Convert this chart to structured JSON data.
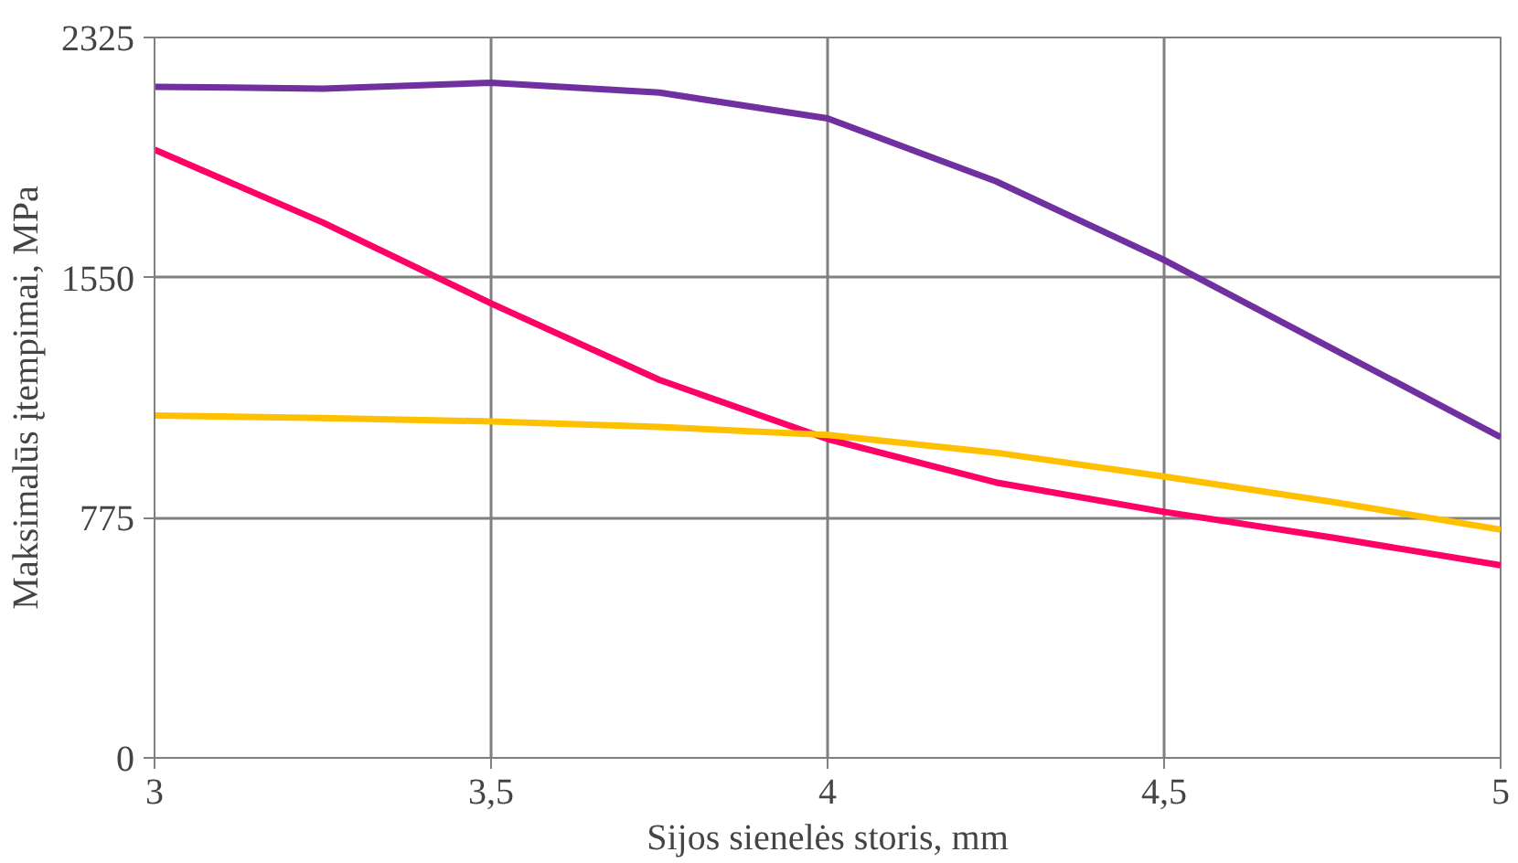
{
  "chart_data": {
    "type": "line",
    "xlabel": "Sijos sienelės storis, mm",
    "ylabel": "Maksimalūs įtempimai, MPa",
    "x": [
      3,
      3.25,
      3.5,
      3.75,
      4,
      4.25,
      4.5,
      4.75,
      5
    ],
    "series": [
      {
        "color": "#7030a0",
        "values": [
          2166,
          2160,
          2179,
          2147,
          2064,
          1861,
          1607,
          1321,
          1035
        ]
      },
      {
        "color": "#ff0066",
        "values": [
          1963,
          1728,
          1467,
          1220,
          1029,
          889,
          794,
          711,
          622
        ]
      },
      {
        "color": "#ffc000",
        "values": [
          1105,
          1097,
          1086,
          1068,
          1042,
          985,
          908,
          826,
          737
        ]
      }
    ],
    "xlim": [
      3,
      5
    ],
    "xticks": [
      3,
      {
        "value": 3.5,
        "label": "3,5"
      },
      4,
      {
        "value": 4.5,
        "label": "4,5"
      },
      5
    ],
    "ylim": [
      0,
      2325
    ],
    "yticks": [
      0,
      775,
      1550,
      2325
    ],
    "grid": true,
    "marker": "none",
    "line_style": "solid"
  }
}
